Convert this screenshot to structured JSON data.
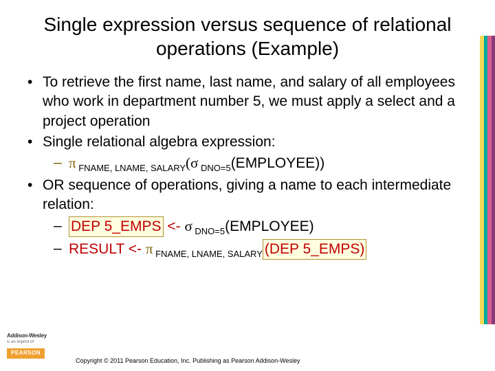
{
  "title": "Single expression versus sequence of relational operations (Example)",
  "bullets": {
    "b1": "To retrieve the first name, last name, and salary of all employees who work in department number 5, we must apply a select and a project operation",
    "b2": "Single relational algebra expression:",
    "b2a_pi": "π",
    "b2a_sub1": " FNAME, LNAME, SALARY",
    "b2a_sigma": "(σ",
    "b2a_sub2": " DNO=5",
    "b2a_tail": "(EMPLOYEE))",
    "b3": "OR sequence of operations, giving a name to each intermediate relation:",
    "b3a_hl": "DEP 5_EMPS ",
    "b3a_arrow": " <- ",
    "b3a_sigma": "σ",
    "b3a_sub": " DNO=5",
    "b3a_tail": "(EMPLOYEE)",
    "b3b_pre": "RESULT ",
    "b3b_arrow": "<- ",
    "b3b_pi": "π",
    "b3b_sub": " FNAME, LNAME, SALARY",
    "b3b_hl": " (DEP 5_EMPS) "
  },
  "logos": {
    "aw": "Addison-Wesley",
    "aw_sub": "is an imprint of",
    "pearson": "PEARSON"
  },
  "copyright": "Copyright © 2011 Pearson Education, Inc. Publishing as Pearson Addison-Wesley",
  "stripe_colors": [
    "#f3d95a",
    "#00a8a0",
    "#d86090",
    "#8a3a7a"
  ]
}
